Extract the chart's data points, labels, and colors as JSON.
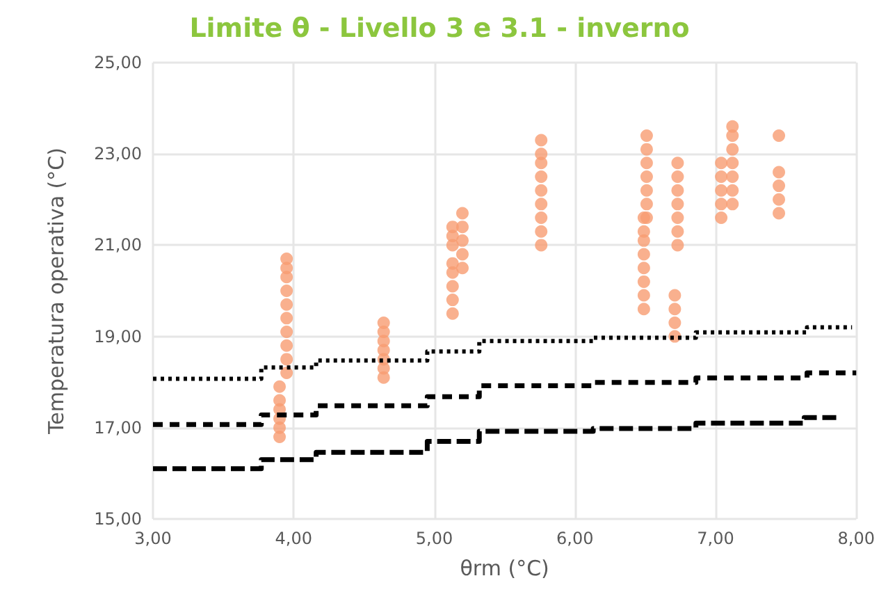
{
  "chart_data": {
    "type": "scatter",
    "title": "Limite θ - Livello 3 e 3.1 - inverno",
    "xlabel": "θrm (°C)",
    "ylabel": "Temperatura operativa (°C)",
    "xlim": [
      3,
      8
    ],
    "xticks": [
      {
        "value": 3,
        "label": "3,00"
      },
      {
        "value": 4,
        "label": "4,00"
      },
      {
        "value": 5,
        "label": "5,00"
      },
      {
        "value": 6,
        "label": "6,00"
      },
      {
        "value": 7,
        "label": "7,00"
      },
      {
        "value": 8,
        "label": "8,00"
      }
    ],
    "ylim": [
      15,
      25
    ],
    "yticks": [
      {
        "value": 15,
        "label": "15,00"
      },
      {
        "value": 17,
        "label": "17,00"
      },
      {
        "value": 19,
        "label": "19,00"
      },
      {
        "value": 21,
        "label": "21,00"
      },
      {
        "value": 23,
        "label": "23,00"
      },
      {
        "value": 25,
        "label": "25,00"
      }
    ],
    "grid": true,
    "series": [
      {
        "color": "#f79c72",
        "marker": "circle",
        "x": [
          3.9,
          3.9,
          3.9,
          3.9,
          3.9,
          3.9,
          3.95,
          3.95,
          3.95,
          3.95,
          3.95,
          3.95,
          3.95,
          3.95,
          3.95,
          3.95,
          4.64,
          4.64,
          4.64,
          4.64,
          4.64,
          4.64,
          4.64,
          5.13,
          5.13,
          5.13,
          5.13,
          5.13,
          5.13,
          5.13,
          5.13,
          5.2,
          5.2,
          5.2,
          5.2,
          5.2,
          5.76,
          5.76,
          5.76,
          5.76,
          5.76,
          5.76,
          5.76,
          5.76,
          5.76,
          6.49,
          6.49,
          6.49,
          6.49,
          6.49,
          6.49,
          6.49,
          6.49,
          6.51,
          6.51,
          6.51,
          6.51,
          6.51,
          6.51,
          6.51,
          6.73,
          6.73,
          6.73,
          6.73,
          6.73,
          6.73,
          6.73,
          6.71,
          6.71,
          6.71,
          6.71,
          7.04,
          7.04,
          7.04,
          7.04,
          7.04,
          7.12,
          7.12,
          7.12,
          7.12,
          7.12,
          7.12,
          7.12,
          7.45,
          7.45,
          7.45,
          7.45,
          7.45
        ],
        "values": [
          16.8,
          17.0,
          17.2,
          17.4,
          17.6,
          17.9,
          18.2,
          18.5,
          18.8,
          19.1,
          19.4,
          19.7,
          20.0,
          20.3,
          20.5,
          20.7,
          18.1,
          18.3,
          18.5,
          18.7,
          18.9,
          19.1,
          19.3,
          19.5,
          19.8,
          20.1,
          20.4,
          20.6,
          21.0,
          21.2,
          21.4,
          20.5,
          20.8,
          21.1,
          21.4,
          21.7,
          21.0,
          21.3,
          21.6,
          21.9,
          22.2,
          22.5,
          22.8,
          23.0,
          23.3,
          19.6,
          19.9,
          20.2,
          20.5,
          20.8,
          21.1,
          21.3,
          21.6,
          21.6,
          21.9,
          22.2,
          22.5,
          22.8,
          23.1,
          23.4,
          21.0,
          21.3,
          21.6,
          21.9,
          22.2,
          22.5,
          22.8,
          19.0,
          19.3,
          19.6,
          19.9,
          21.6,
          21.9,
          22.2,
          22.5,
          22.8,
          21.9,
          22.2,
          22.5,
          22.8,
          23.1,
          23.4,
          23.6,
          21.7,
          22.0,
          22.3,
          22.6,
          23.4
        ]
      },
      {
        "type": "step",
        "color": "#000000",
        "marker": "none",
        "line_style": "dotted",
        "x": [
          3,
          3.77,
          4.16,
          4.95,
          5.32,
          6.13,
          6.86,
          7.65,
          7.97
        ],
        "values": [
          18.07,
          18.32,
          18.47,
          18.67,
          18.9,
          18.97,
          19.09,
          19.2,
          19.2
        ]
      },
      {
        "type": "step",
        "color": "#000000",
        "marker": "none",
        "line_style": "dashed",
        "x": [
          3,
          3.77,
          4.16,
          4.95,
          5.32,
          6.13,
          6.86,
          7.65,
          8.0
        ],
        "values": [
          17.07,
          17.28,
          17.48,
          17.68,
          17.92,
          17.99,
          18.09,
          18.2,
          18.2
        ]
      },
      {
        "type": "step",
        "color": "#000000",
        "marker": "none",
        "line_style": "longdash",
        "x": [
          3,
          3.77,
          4.16,
          4.95,
          5.32,
          6.13,
          6.86,
          7.63,
          7.89
        ],
        "values": [
          16.1,
          16.3,
          16.46,
          16.7,
          16.92,
          16.98,
          17.1,
          17.22,
          17.22
        ]
      }
    ]
  }
}
